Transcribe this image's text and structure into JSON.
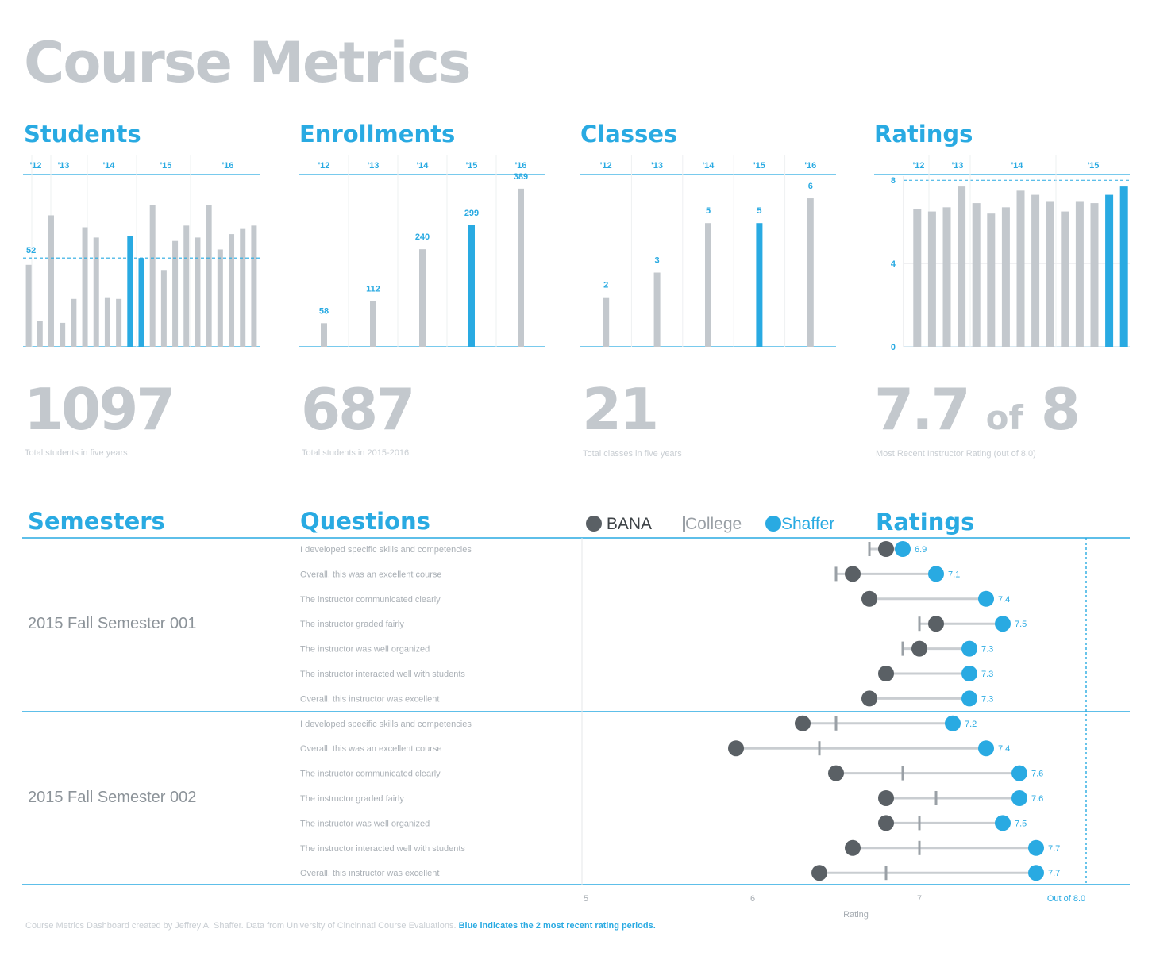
{
  "title": "Course Metrics",
  "colors": {
    "blue": "#29aae2",
    "gray": "#c3c8cd",
    "dark": "#5a6065",
    "college": "#b8bdc2"
  },
  "panels": {
    "students": {
      "title": "Students",
      "big": "1097",
      "caption": "Total students in five years"
    },
    "enrollments": {
      "title": "Enrollments",
      "big": "687",
      "caption": "Total students in 2015-2016"
    },
    "classes": {
      "title": "Classes",
      "big": "21",
      "caption": "Total classes in five years"
    },
    "ratings": {
      "title": "Ratings",
      "big_value": "7.7",
      "big_of": "of",
      "big_total": "8",
      "caption": "Most Recent Instructor Rating (out of 8.0)"
    }
  },
  "bottom": {
    "semesters_title": "Semesters",
    "questions_title": "Questions",
    "ratings_title": "Ratings",
    "legend": {
      "bana": "BANA",
      "college": "College",
      "shaffer": "Shaffer"
    }
  },
  "footer": {
    "text": "Course Metrics Dashboard created by Jeffrey A. Shaffer. Data from University of Cincinnati Course Evaluations.",
    "highlight": "Blue indicates the 2 most recent rating periods."
  },
  "chart_data": [
    {
      "type": "bar",
      "title": "Students",
      "period_labels": [
        "'12",
        "'13",
        "'14",
        "'15",
        "'16"
      ],
      "values": [
        48,
        15,
        77,
        14,
        28,
        70,
        64,
        29,
        28,
        65,
        52,
        83,
        45,
        62,
        71,
        64,
        83,
        57,
        66,
        69,
        71
      ],
      "highlight_indices": [
        9,
        10
      ],
      "reference_line": {
        "label": "52",
        "value": 52
      },
      "ylim": [
        0,
        100
      ]
    },
    {
      "type": "bar",
      "title": "Enrollments",
      "categories": [
        "'12",
        "'13",
        "'14",
        "'15",
        "'16"
      ],
      "values": [
        58,
        112,
        240,
        299,
        389
      ],
      "highlight_indices": [
        3
      ],
      "ylim": [
        0,
        420
      ]
    },
    {
      "type": "bar",
      "title": "Classes",
      "categories": [
        "'12",
        "'13",
        "'14",
        "'15",
        "'16"
      ],
      "values": [
        2,
        3,
        5,
        5,
        6
      ],
      "highlight_indices": [
        3
      ],
      "ylim": [
        0,
        6.9
      ]
    },
    {
      "type": "bar",
      "title": "Ratings",
      "period_labels": [
        "'12",
        "'13",
        "'14",
        "'15"
      ],
      "values": [
        6.6,
        6.5,
        6.7,
        7.7,
        6.9,
        6.4,
        6.7,
        7.5,
        7.3,
        7.0,
        6.5,
        7.0,
        6.9,
        7.3,
        7.7
      ],
      "highlight_indices": [
        13,
        14
      ],
      "yticks": [
        0,
        4,
        8
      ],
      "ylim": [
        0,
        8.2
      ]
    },
    {
      "type": "dumbbell",
      "title": "Ratings",
      "xlabel": "Rating",
      "xticks": [
        "5",
        "6",
        "7"
      ],
      "xmax_label": "Out of 8.0",
      "xlim": [
        5,
        8.25
      ],
      "groups": [
        {
          "semester": "2015 Fall Semester 001",
          "rows": [
            {
              "question": "I developed specific skills and competencies",
              "bana": 6.8,
              "college": 6.7,
              "shaffer": 6.9,
              "label": "6.9"
            },
            {
              "question": "Overall, this was an excellent course",
              "bana": 6.6,
              "college": 6.5,
              "shaffer": 7.1,
              "label": "7.1"
            },
            {
              "question": "The instructor communicated clearly",
              "bana": 6.7,
              "college": 6.7,
              "shaffer": 7.4,
              "label": "7.4"
            },
            {
              "question": "The instructor graded fairly",
              "bana": 7.1,
              "college": 7.0,
              "shaffer": 7.5,
              "label": "7.5"
            },
            {
              "question": "The instructor was well organized",
              "bana": 7.0,
              "college": 6.9,
              "shaffer": 7.3,
              "label": "7.3"
            },
            {
              "question": "The instructor interacted well with students",
              "bana": 6.8,
              "college": 6.8,
              "shaffer": 7.3,
              "label": "7.3"
            },
            {
              "question": "Overall, this instructor was excellent",
              "bana": 6.7,
              "college": 6.7,
              "shaffer": 7.3,
              "label": "7.3"
            }
          ]
        },
        {
          "semester": "2015 Fall Semester 002",
          "rows": [
            {
              "question": "I developed specific skills and competencies",
              "bana": 6.3,
              "college": 6.5,
              "shaffer": 7.2,
              "label": "7.2"
            },
            {
              "question": "Overall, this was an excellent course",
              "bana": 5.9,
              "college": 6.4,
              "shaffer": 7.4,
              "label": "7.4"
            },
            {
              "question": "The instructor communicated clearly",
              "bana": 6.5,
              "college": 6.9,
              "shaffer": 7.6,
              "label": "7.6"
            },
            {
              "question": "The instructor graded fairly",
              "bana": 6.8,
              "college": 7.1,
              "shaffer": 7.6,
              "label": "7.6"
            },
            {
              "question": "The instructor was well organized",
              "bana": 6.8,
              "college": 7.0,
              "shaffer": 7.5,
              "label": "7.5"
            },
            {
              "question": "The instructor interacted well with students",
              "bana": 6.6,
              "college": 7.0,
              "shaffer": 7.7,
              "label": "7.7"
            },
            {
              "question": "Overall, this instructor was excellent",
              "bana": 6.4,
              "college": 6.8,
              "shaffer": 7.7,
              "label": "7.7"
            }
          ]
        }
      ]
    }
  ]
}
